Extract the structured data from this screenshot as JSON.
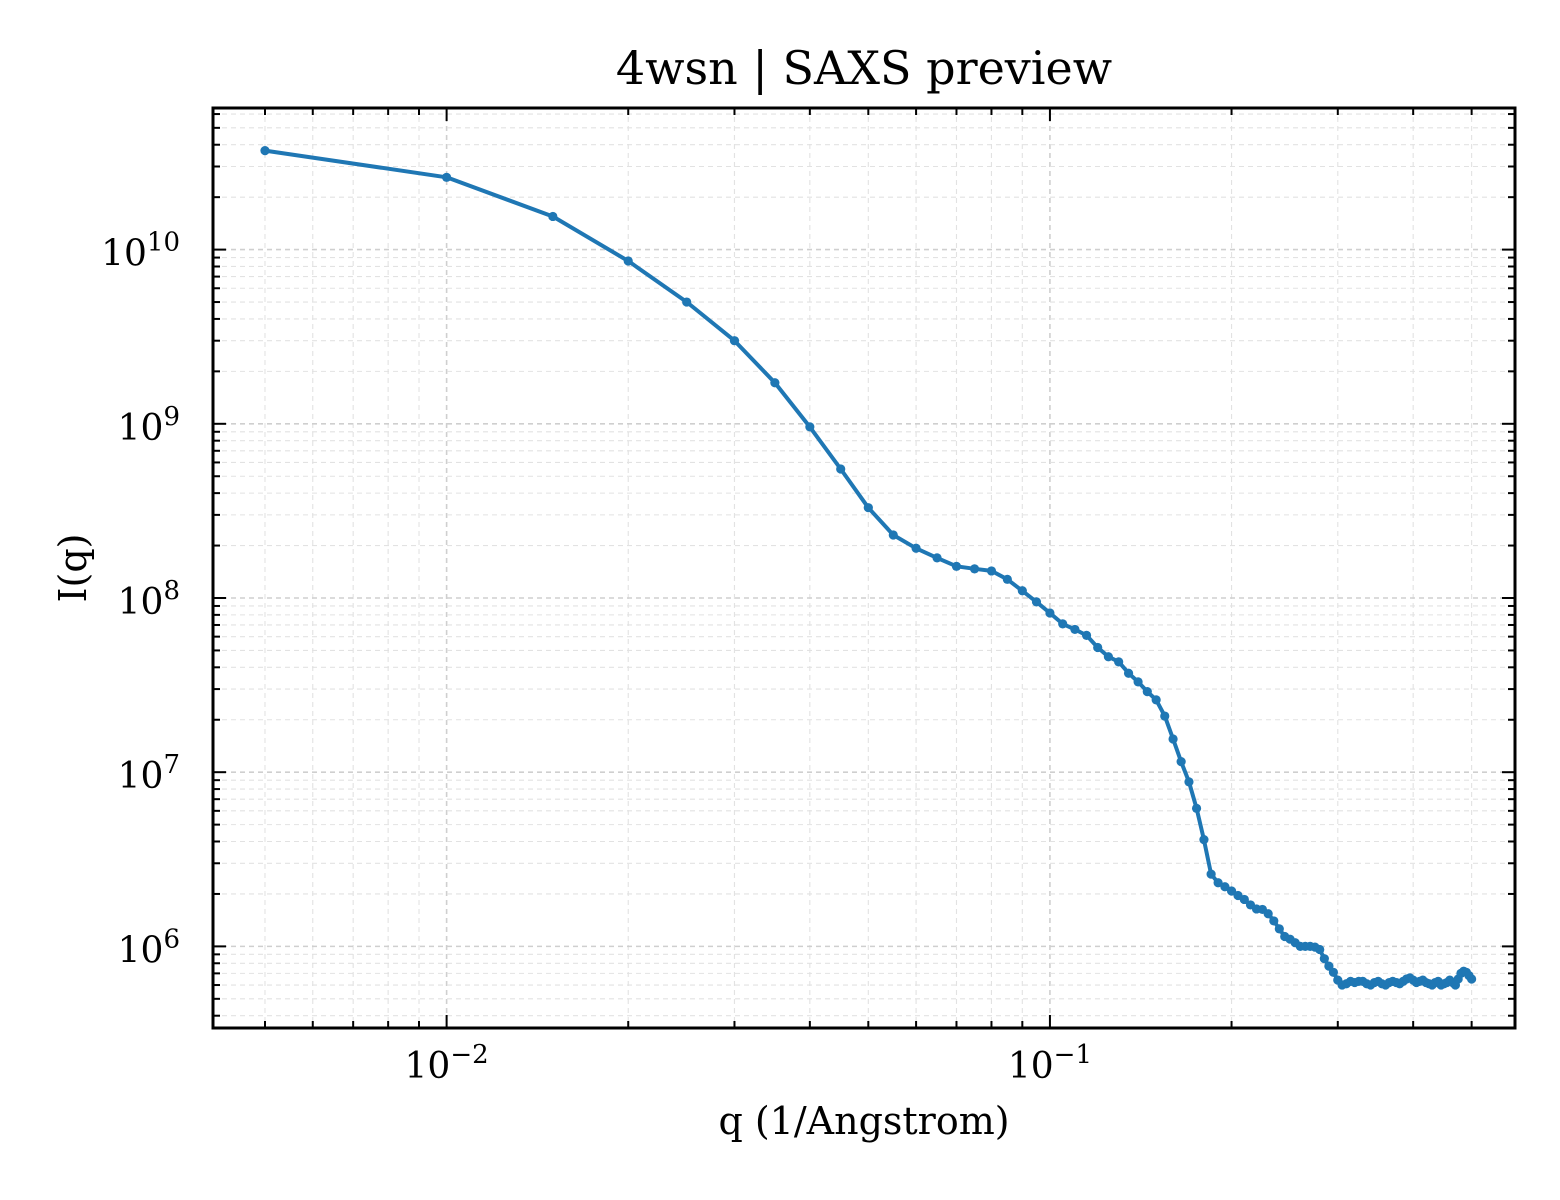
{
  "chart_data": {
    "type": "line",
    "title": "4wsn | SAXS preview",
    "xlabel": "q (1/Angstrom)",
    "ylabel": "I(q)",
    "xscale": "log",
    "yscale": "log",
    "xlim": [
      0.0041,
      0.59
    ],
    "ylim": [
      340000,
      65000000000
    ],
    "grid": true,
    "legend": "none",
    "line_color": "#1f77b4",
    "x_ticks": [
      {
        "value": 0.01,
        "base": "10",
        "exp": "−2"
      },
      {
        "value": 0.1,
        "base": "10",
        "exp": "−1"
      }
    ],
    "y_ticks": [
      {
        "value": 1000000,
        "base": "10",
        "exp": "6"
      },
      {
        "value": 10000000,
        "base": "10",
        "exp": "7"
      },
      {
        "value": 100000000,
        "base": "10",
        "exp": "8"
      },
      {
        "value": 1000000000,
        "base": "10",
        "exp": "9"
      },
      {
        "value": 10000000000,
        "base": "10",
        "exp": "10"
      }
    ],
    "series": [
      {
        "x": [
          0.005,
          0.01,
          0.015,
          0.02,
          0.025,
          0.03,
          0.035,
          0.04,
          0.045,
          0.05,
          0.055,
          0.06,
          0.065,
          0.07,
          0.075,
          0.08,
          0.085,
          0.09,
          0.095,
          0.1,
          0.105,
          0.11,
          0.115,
          0.12,
          0.125,
          0.13,
          0.135,
          0.14,
          0.145,
          0.15,
          0.155,
          0.16,
          0.165,
          0.17,
          0.175,
          0.18,
          0.185,
          0.19,
          0.195,
          0.2,
          0.205,
          0.21,
          0.215,
          0.22,
          0.225,
          0.23,
          0.235,
          0.24,
          0.245,
          0.25,
          0.255,
          0.26,
          0.265,
          0.27,
          0.275,
          0.28,
          0.285,
          0.29,
          0.295,
          0.3,
          0.305,
          0.31,
          0.315,
          0.32,
          0.325,
          0.33,
          0.335,
          0.34,
          0.345,
          0.35,
          0.355,
          0.36,
          0.365,
          0.37,
          0.375,
          0.38,
          0.385,
          0.39,
          0.395,
          0.4,
          0.405,
          0.41,
          0.415,
          0.42,
          0.425,
          0.43,
          0.435,
          0.44,
          0.445,
          0.45,
          0.455,
          0.46,
          0.465,
          0.47,
          0.475,
          0.48,
          0.485,
          0.49,
          0.495,
          0.5
        ],
        "y": [
          37000000000,
          26000000000,
          15500000000,
          8600000000,
          5000000000,
          3000000000,
          1720000000,
          960000000,
          550000000,
          330000000,
          230000000,
          193000000,
          170000000,
          152000000,
          147000000,
          143000000,
          128000000,
          110000000,
          95000000,
          82000000,
          71000000,
          66000000,
          61000000,
          52000000,
          46000000,
          43000000,
          37000000,
          33000000,
          29000000,
          26000000,
          21000000,
          15500000,
          11500000,
          8800000,
          6200000,
          4100000,
          2600000,
          2320000,
          2200000,
          2080000,
          1960000,
          1860000,
          1730000,
          1640000,
          1630000,
          1540000,
          1400000,
          1260000,
          1140000,
          1100000,
          1050000,
          1000000,
          1000000,
          1000000,
          990000,
          960000,
          850000,
          770000,
          710000,
          640000,
          600000,
          610000,
          630000,
          620000,
          630000,
          630000,
          610000,
          600000,
          620000,
          630000,
          610000,
          600000,
          620000,
          630000,
          620000,
          610000,
          630000,
          650000,
          660000,
          640000,
          620000,
          630000,
          640000,
          620000,
          610000,
          600000,
          620000,
          630000,
          600000,
          610000,
          620000,
          640000,
          620000,
          600000,
          650000,
          700000,
          720000,
          710000,
          680000,
          650000
        ]
      }
    ]
  }
}
